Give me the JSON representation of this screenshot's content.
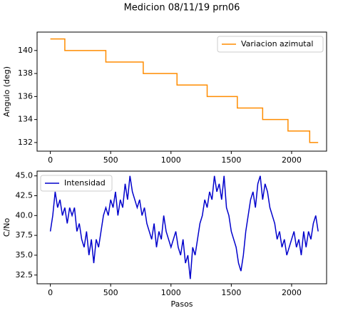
{
  "title": "Medicion 08/11/19 prn06",
  "chart_data": [
    {
      "type": "line",
      "ylabel": "Angulo (deg)",
      "x": [
        0,
        120,
        120,
        460,
        460,
        770,
        770,
        1050,
        1050,
        1300,
        1300,
        1550,
        1550,
        1760,
        1760,
        1970,
        1970,
        2150,
        2150,
        2220
      ],
      "series": [
        {
          "name": "Variacion azimutal",
          "color": "#ff8c00",
          "values": [
            141,
            141,
            140,
            140,
            139,
            139,
            138,
            138,
            137,
            137,
            136,
            136,
            135,
            135,
            134,
            134,
            133,
            133,
            132,
            132
          ]
        }
      ],
      "xlim": [
        -110,
        2290
      ],
      "xticks": [
        0,
        500,
        1000,
        1500,
        2000
      ],
      "ylim": [
        131.25,
        141.6
      ],
      "yticks": [
        132,
        134,
        136,
        138,
        140
      ],
      "legend": "upper right"
    },
    {
      "type": "line",
      "xlabel": "Pasos",
      "ylabel": "C/No",
      "x": [
        0,
        20,
        40,
        60,
        80,
        100,
        120,
        140,
        160,
        180,
        200,
        220,
        240,
        260,
        280,
        300,
        320,
        340,
        360,
        380,
        400,
        420,
        440,
        460,
        480,
        500,
        520,
        540,
        560,
        580,
        600,
        620,
        640,
        660,
        680,
        700,
        720,
        740,
        760,
        780,
        800,
        820,
        840,
        860,
        880,
        900,
        920,
        940,
        960,
        980,
        1000,
        1020,
        1040,
        1060,
        1080,
        1100,
        1120,
        1140,
        1160,
        1180,
        1200,
        1220,
        1240,
        1260,
        1280,
        1300,
        1320,
        1340,
        1360,
        1380,
        1400,
        1420,
        1440,
        1460,
        1480,
        1500,
        1520,
        1540,
        1560,
        1580,
        1600,
        1620,
        1640,
        1660,
        1680,
        1700,
        1720,
        1740,
        1760,
        1780,
        1800,
        1820,
        1840,
        1860,
        1880,
        1900,
        1920,
        1940,
        1960,
        1980,
        2000,
        2020,
        2040,
        2060,
        2080,
        2100,
        2120,
        2140,
        2160,
        2180,
        2200,
        2220
      ],
      "series": [
        {
          "name": "Intensidad",
          "color": "#0000cc",
          "values": [
            38,
            40,
            43,
            41,
            42,
            40,
            41,
            39,
            41,
            40,
            41,
            38,
            39,
            37,
            36,
            38,
            35,
            37,
            34,
            37,
            36,
            38,
            40,
            41,
            40,
            42,
            41,
            43,
            40,
            42,
            41,
            44,
            42,
            45,
            43,
            42,
            41,
            42,
            40,
            41,
            39,
            38,
            37,
            39,
            36,
            38,
            37,
            40,
            38,
            37,
            36,
            37,
            38,
            36,
            35,
            37,
            34,
            35,
            32,
            36,
            35,
            37,
            39,
            40,
            42,
            41,
            43,
            42,
            45,
            43,
            44,
            42,
            45,
            41,
            40,
            38,
            37,
            36,
            34,
            33,
            35,
            38,
            40,
            42,
            43,
            41,
            44,
            45,
            42,
            44,
            43,
            41,
            40,
            39,
            37,
            38,
            36,
            37,
            35,
            36,
            37,
            38,
            36,
            37,
            35,
            38,
            36,
            38,
            37,
            39,
            40,
            38
          ]
        }
      ],
      "xlim": [
        -110,
        2290
      ],
      "xticks": [
        0,
        500,
        1000,
        1500,
        2000
      ],
      "ylim": [
        31.4,
        45.6
      ],
      "yticks": [
        32.5,
        {
          "value": 35,
          "label": "35.0"
        },
        37.5,
        {
          "value": 40,
          "label": "40.0"
        },
        42.5,
        {
          "value": 45,
          "label": "45.0"
        }
      ],
      "legend": "upper left"
    }
  ]
}
